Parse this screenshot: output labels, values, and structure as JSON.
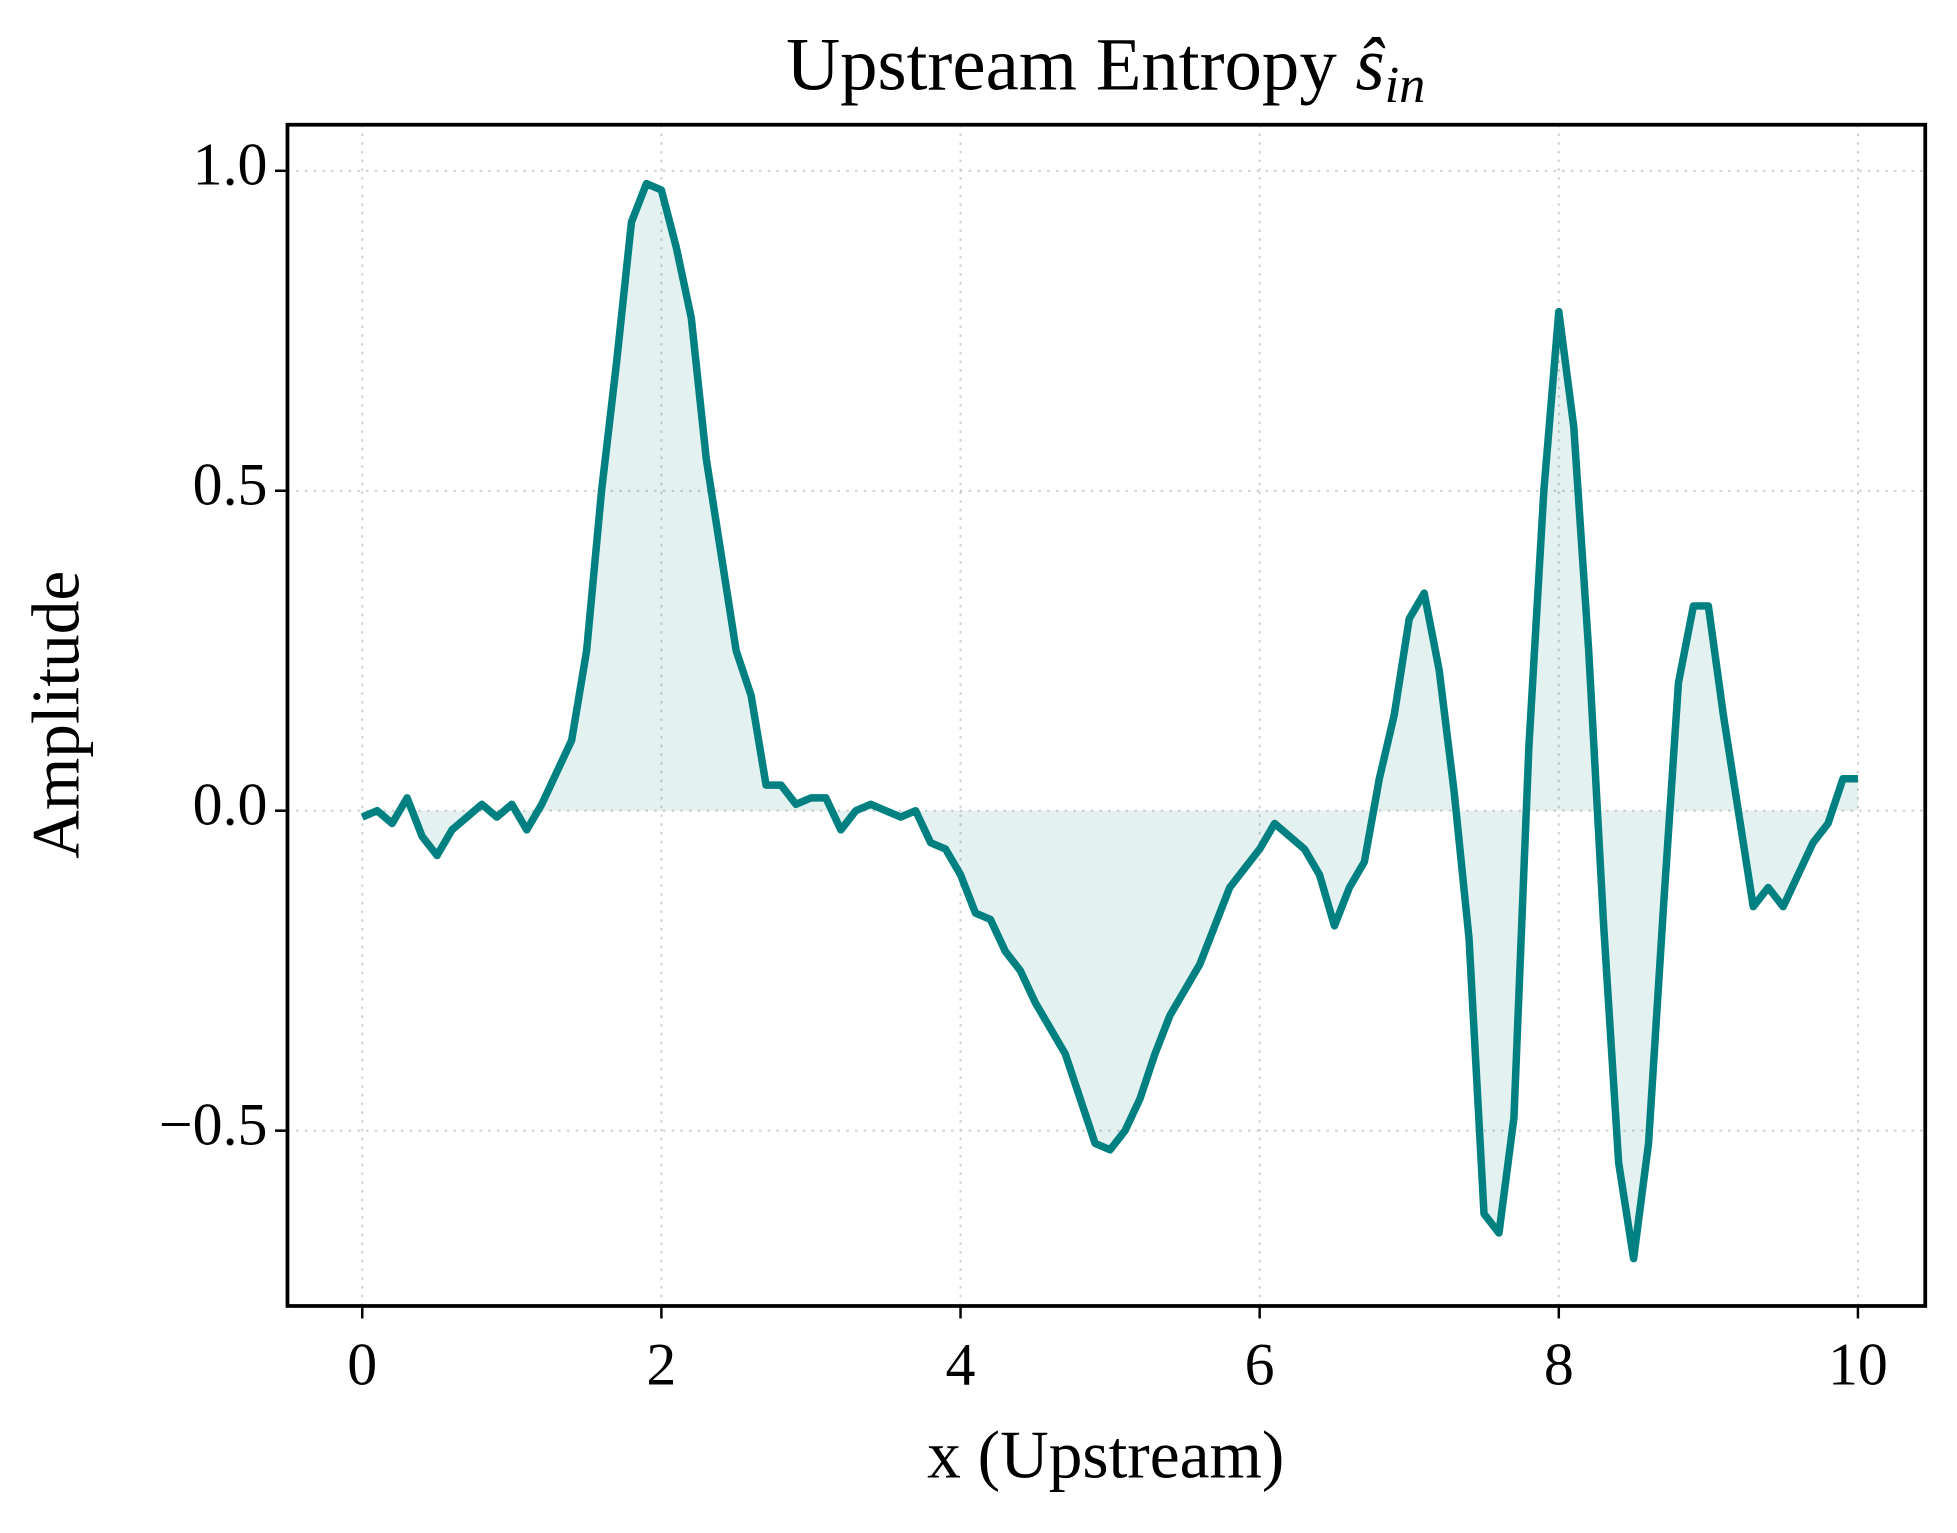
{
  "chart_data": {
    "type": "line",
    "title": "Upstream Entropy",
    "title_symbol": "ŝ",
    "title_subscript": "in",
    "xlabel": "x (Upstream)",
    "ylabel": "Amplitude",
    "x": [
      0,
      0.1,
      0.2,
      0.3,
      0.4,
      0.5,
      0.6,
      0.7,
      0.8,
      0.9,
      1,
      1.1,
      1.2,
      1.3,
      1.4,
      1.5,
      1.6,
      1.7,
      1.8,
      1.9,
      2,
      2.1,
      2.2,
      2.3,
      2.4,
      2.5,
      2.6,
      2.7,
      2.8,
      2.9,
      3,
      3.1,
      3.2,
      3.3,
      3.4,
      3.5,
      3.6,
      3.7,
      3.8,
      3.9,
      4,
      4.1,
      4.2,
      4.3,
      4.4,
      4.5,
      4.6,
      4.7,
      4.8,
      4.9,
      5,
      5.1,
      5.2,
      5.3,
      5.4,
      5.5,
      5.6,
      5.7,
      5.8,
      5.9,
      6,
      6.1,
      6.2,
      6.3,
      6.4,
      6.5,
      6.6,
      6.7,
      6.8,
      6.9,
      7,
      7.1,
      7.2,
      7.3,
      7.4,
      7.5,
      7.6,
      7.7,
      7.8,
      7.9,
      8,
      8.1,
      8.2,
      8.3,
      8.4,
      8.5,
      8.6,
      8.7,
      8.8,
      8.9,
      9,
      9.1,
      9.2,
      9.3,
      9.4,
      9.5,
      9.6,
      9.7,
      9.8,
      9.9,
      10
    ],
    "series": [
      {
        "name": "s_in",
        "color": "#008080",
        "fill_color": "#008080",
        "fill_opacity": 0.11,
        "values": [
          -0.01,
          0.0,
          -0.02,
          0.02,
          -0.04,
          -0.07,
          -0.03,
          -0.01,
          0.01,
          -0.01,
          0.01,
          -0.03,
          0.01,
          0.06,
          0.11,
          0.25,
          0.5,
          0.7,
          0.92,
          0.98,
          0.97,
          0.88,
          0.77,
          0.55,
          0.4,
          0.25,
          0.18,
          0.04,
          0.04,
          0.01,
          0.02,
          0.02,
          -0.03,
          0.0,
          0.01,
          0.0,
          -0.01,
          0.0,
          -0.05,
          -0.06,
          -0.1,
          -0.16,
          -0.17,
          -0.22,
          -0.25,
          -0.3,
          -0.34,
          -0.38,
          -0.45,
          -0.52,
          -0.53,
          -0.5,
          -0.45,
          -0.38,
          -0.32,
          -0.28,
          -0.24,
          -0.18,
          -0.12,
          -0.09,
          -0.06,
          -0.02,
          -0.04,
          -0.06,
          -0.1,
          -0.18,
          -0.12,
          -0.08,
          0.05,
          0.15,
          0.3,
          0.34,
          0.22,
          0.03,
          -0.2,
          -0.63,
          -0.66,
          -0.48,
          0.1,
          0.5,
          0.78,
          0.6,
          0.25,
          -0.18,
          -0.55,
          -0.7,
          -0.52,
          -0.15,
          0.2,
          0.32,
          0.32,
          0.15,
          0.0,
          -0.15,
          -0.12,
          -0.15,
          -0.1,
          -0.05,
          -0.02,
          0.05,
          0.05
        ]
      }
    ],
    "xlim": [
      -0.5,
      10.45
    ],
    "ylim": [
      -0.774,
      1.072
    ],
    "xticks": [
      0,
      2,
      4,
      6,
      8,
      10
    ],
    "yticks": [
      {
        "value": -0.5,
        "label": "−0.5"
      },
      {
        "value": 0,
        "label": "0.0"
      },
      {
        "value": 0.5,
        "label": "0.5"
      },
      {
        "value": 1.0,
        "label": "1.0"
      }
    ],
    "grid": true
  }
}
